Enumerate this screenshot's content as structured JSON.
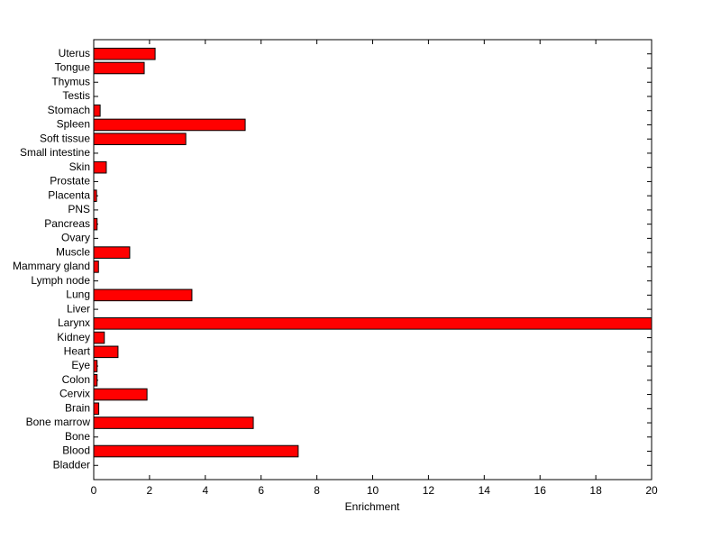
{
  "chart_data": {
    "type": "barh",
    "x_label": "Enrichment",
    "categories": [
      "Bladder",
      "Blood",
      "Bone",
      "Bone marrow",
      "Brain",
      "Cervix",
      "Colon",
      "Eye",
      "Heart",
      "Kidney",
      "Larynx",
      "Liver",
      "Lung",
      "Lymph node",
      "Mammary gland",
      "Muscle",
      "Ovary",
      "Pancreas",
      "PNS",
      "Placenta",
      "Prostate",
      "Skin",
      "Small intestine",
      "Soft tissue",
      "Spleen",
      "Stomach",
      "Testis",
      "Thymus",
      "Tongue",
      "Uterus"
    ],
    "values": [
      0,
      7.33,
      0,
      5.72,
      0.18,
      1.91,
      0.12,
      0.12,
      0.87,
      0.38,
      20,
      0,
      3.52,
      0,
      0.17,
      1.29,
      0,
      0.12,
      0,
      0.1,
      0,
      0.45,
      0,
      3.3,
      5.43,
      0.23,
      0,
      0,
      1.81,
      2.2
    ],
    "color": "#ff0000",
    "xlim": [
      0,
      20
    ],
    "xticks": [
      0,
      2,
      4,
      6,
      8,
      10,
      12,
      14,
      16,
      18,
      20
    ]
  }
}
